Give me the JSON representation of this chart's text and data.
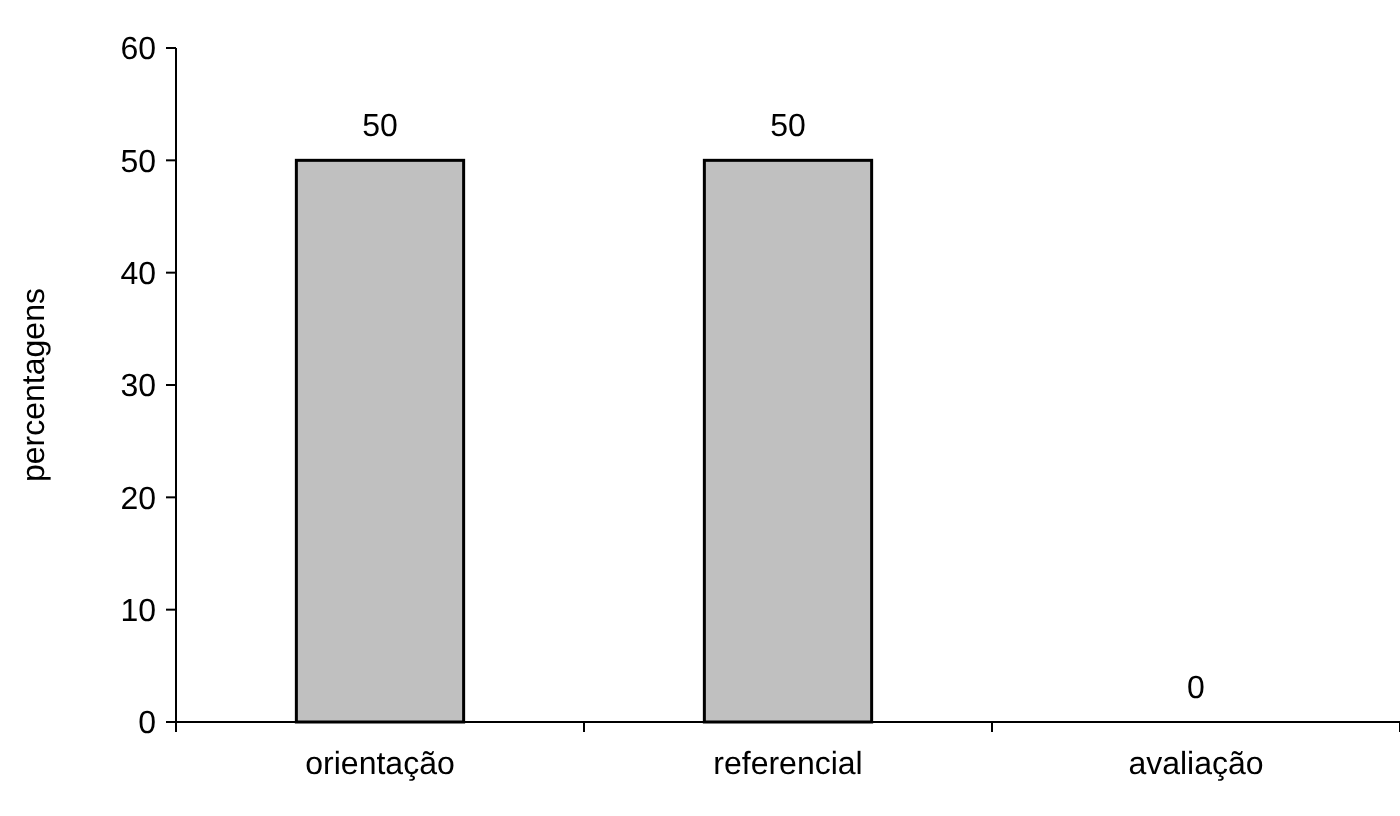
{
  "chart_data": {
    "type": "bar",
    "ylabel": "percentagens",
    "categories": [
      "orientação",
      "referencial",
      "avaliação"
    ],
    "values": [
      50,
      50,
      0
    ],
    "color": "#c0c0c0",
    "ylim": [
      0,
      60
    ],
    "yticks": [
      0,
      10,
      20,
      30,
      40,
      50,
      60
    ],
    "data_labels": true,
    "grid": false
  }
}
